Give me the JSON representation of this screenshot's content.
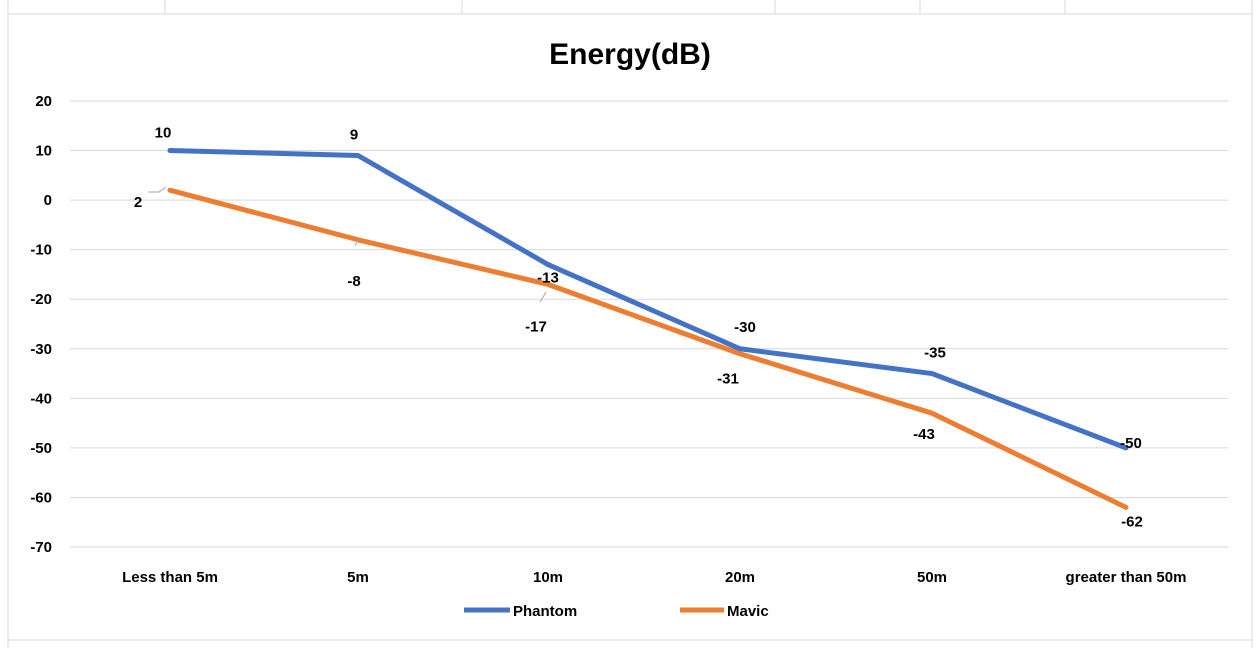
{
  "chart_data": {
    "type": "line",
    "title": "Energy(dB)",
    "xlabel": "",
    "ylabel": "",
    "categories": [
      "Less than 5m",
      "5m",
      "10m",
      "20m",
      "50m",
      "greater than 50m"
    ],
    "ylim": [
      -70,
      20
    ],
    "yticks": [
      20,
      10,
      0,
      -10,
      -20,
      -30,
      -40,
      -50,
      -60,
      -70
    ],
    "grid": true,
    "legend": "bottom",
    "series": [
      {
        "name": "Phantom",
        "color": "#4472c4",
        "values": [
          10,
          9,
          -13,
          -30,
          -35,
          -50
        ],
        "labels": [
          "10",
          "9",
          "-13",
          "-30",
          "-35",
          "-50"
        ]
      },
      {
        "name": "Mavic",
        "color": "#ed7d31",
        "values": [
          2,
          -8,
          -17,
          -31,
          -43,
          -62
        ],
        "labels": [
          "2",
          "-8",
          "-17",
          "-31",
          "-43",
          "-62"
        ]
      }
    ]
  }
}
